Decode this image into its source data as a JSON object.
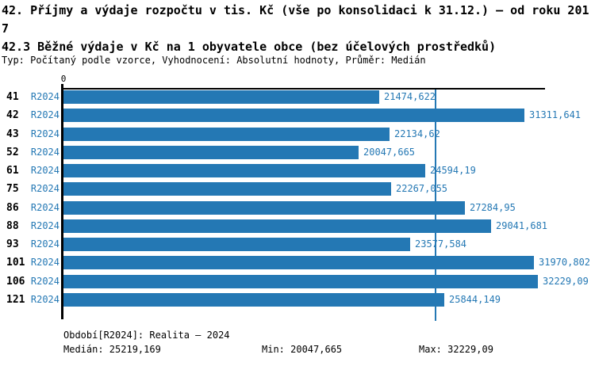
{
  "header": {
    "title": "42. Příjmy a výdaje rozpočtu v tis. Kč (vše po konsolidaci k 31.12.) – od roku 2017",
    "subtitle": "42.3 Běžné výdaje v Kč na 1 obyvatele obce (bez účelových prostředků)",
    "meta": "Typ: Počítaný podle vzorce, Vyhodnocení: Absolutní hodnoty, Průměr: Medián"
  },
  "chart_data": {
    "type": "bar",
    "orientation": "horizontal",
    "title": "42.3 Běžné výdaje v Kč na 1 obyvatele obce (bez účelových prostředků)",
    "categories": [
      "41",
      "42",
      "43",
      "52",
      "61",
      "75",
      "86",
      "88",
      "93",
      "101",
      "106",
      "121"
    ],
    "series_label": "R2024",
    "values": [
      21474.622,
      31311.641,
      22134.62,
      20047.665,
      24594.19,
      22267.055,
      27284.95,
      29041.681,
      23577.584,
      31970.802,
      32229.09,
      25844.149
    ],
    "value_labels": [
      "21474,622",
      "31311,641",
      "22134,62",
      "20047,665",
      "24594,19",
      "22267,055",
      "27284,95",
      "29041,681",
      "23577,584",
      "31970,802",
      "32229,09",
      "25844,149"
    ],
    "xlabel": "",
    "ylabel": "",
    "xlim": [
      0,
      32715
    ],
    "x_axis_ticks": [
      "0"
    ],
    "grid": false,
    "legend": "none",
    "median_line_value": 25219.169,
    "bar_color": "#2478B4",
    "median_line_color": "#2478B4"
  },
  "footer": {
    "period": "Období[R2024]: Realita – 2024",
    "median": "Medián: 25219,169",
    "min": "Min: 20047,665",
    "max": "Max: 32229,09"
  },
  "colors": {
    "accent_blue": "#2478B4",
    "axis_black": "#000000",
    "background": "#FFFFFF"
  }
}
